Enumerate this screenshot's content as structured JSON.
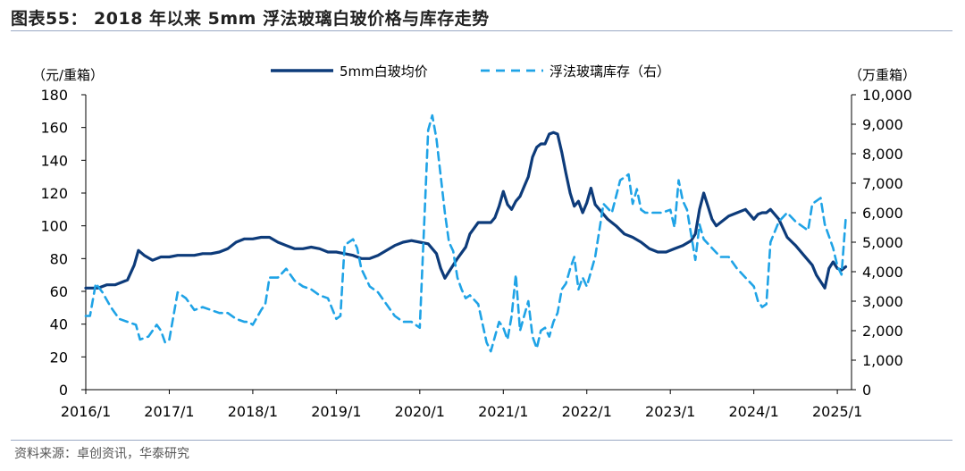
{
  "title": "图表55： 2018 年以来 5mm 浮法玻璃白玻价格与库存走势",
  "source": "资料来源：卓创资讯，华泰研究",
  "colors": {
    "price": "#0d3b7a",
    "inventory": "#1fa3e6",
    "axis": "#000000",
    "rule": "#9aa9c4"
  },
  "chart_data": {
    "type": "line",
    "title": "2018 年以来 5mm 浮法玻璃白玻价格与库存走势",
    "left_axis": {
      "label": "（元/重箱）",
      "min": 0,
      "max": 180,
      "ticks": [
        "0",
        "20",
        "40",
        "60",
        "80",
        "100",
        "120",
        "140",
        "160",
        "180"
      ]
    },
    "right_axis": {
      "label": "（万重箱）",
      "min": 0,
      "max": 10000,
      "ticks": [
        "0",
        "1,000",
        "2,000",
        "3,000",
        "4,000",
        "5,000",
        "6,000",
        "7,000",
        "8,000",
        "9,000",
        "10,000"
      ]
    },
    "x_axis": {
      "min": 2016.0,
      "max": 2025.17,
      "ticks": [
        {
          "label": "2016/1",
          "value": 2016.0
        },
        {
          "label": "2017/1",
          "value": 2017.0
        },
        {
          "label": "2018/1",
          "value": 2018.0
        },
        {
          "label": "2019/1",
          "value": 2019.0
        },
        {
          "label": "2020/1",
          "value": 2020.0
        },
        {
          "label": "2021/1",
          "value": 2021.0
        },
        {
          "label": "2022/1",
          "value": 2022.0
        },
        {
          "label": "2023/1",
          "value": 2023.0
        },
        {
          "label": "2024/1",
          "value": 2024.0
        },
        {
          "label": "2025/1",
          "value": 2025.0
        }
      ]
    },
    "legend": {
      "position": "top-center"
    },
    "series": [
      {
        "name": "5mm白玻均价",
        "axis": "left",
        "style": "solid",
        "x": [
          2016.0,
          2016.15,
          2016.25,
          2016.35,
          2016.5,
          2016.58,
          2016.63,
          2016.7,
          2016.8,
          2016.9,
          2017.0,
          2017.1,
          2017.2,
          2017.3,
          2017.4,
          2017.5,
          2017.6,
          2017.7,
          2017.8,
          2017.9,
          2018.0,
          2018.1,
          2018.2,
          2018.3,
          2018.4,
          2018.5,
          2018.6,
          2018.7,
          2018.8,
          2018.9,
          2019.0,
          2019.1,
          2019.2,
          2019.3,
          2019.4,
          2019.5,
          2019.6,
          2019.7,
          2019.8,
          2019.9,
          2020.0,
          2020.1,
          2020.2,
          2020.25,
          2020.3,
          2020.35,
          2020.45,
          2020.55,
          2020.6,
          2020.7,
          2020.8,
          2020.85,
          2020.9,
          2020.95,
          2021.0,
          2021.05,
          2021.1,
          2021.15,
          2021.2,
          2021.25,
          2021.3,
          2021.35,
          2021.4,
          2021.45,
          2021.5,
          2021.55,
          2021.6,
          2021.65,
          2021.7,
          2021.75,
          2021.8,
          2021.85,
          2021.9,
          2021.95,
          2022.0,
          2022.05,
          2022.1,
          2022.15,
          2022.2,
          2022.25,
          2022.3,
          2022.35,
          2022.45,
          2022.55,
          2022.65,
          2022.75,
          2022.85,
          2022.95,
          2023.05,
          2023.15,
          2023.25,
          2023.3,
          2023.35,
          2023.4,
          2023.45,
          2023.5,
          2023.55,
          2023.6,
          2023.7,
          2023.8,
          2023.9,
          2024.0,
          2024.05,
          2024.1,
          2024.15,
          2024.2,
          2024.3,
          2024.4,
          2024.5,
          2024.6,
          2024.7,
          2024.75,
          2024.8,
          2024.85,
          2024.9,
          2024.95,
          2025.0,
          2025.05,
          2025.1
        ],
        "values": [
          62,
          62,
          64,
          64,
          67,
          76,
          85,
          82,
          79,
          81,
          81,
          82,
          82,
          82,
          83,
          83,
          84,
          86,
          90,
          92,
          92,
          93,
          93,
          90,
          88,
          86,
          86,
          87,
          86,
          84,
          84,
          83,
          82,
          80,
          80,
          82,
          85,
          88,
          90,
          91,
          90,
          89,
          83,
          74,
          68,
          72,
          80,
          87,
          95,
          102,
          102,
          102,
          105,
          112,
          121,
          113,
          110,
          115,
          118,
          124,
          130,
          142,
          148,
          150,
          150,
          156,
          157,
          156,
          145,
          132,
          120,
          112,
          115,
          108,
          114,
          123,
          113,
          110,
          107,
          104,
          102,
          100,
          95,
          93,
          90,
          86,
          84,
          84,
          86,
          88,
          91,
          95,
          110,
          120,
          112,
          104,
          100,
          102,
          106,
          108,
          110,
          104,
          107,
          108,
          108,
          110,
          104,
          93,
          88,
          82,
          76,
          70,
          66,
          62,
          74,
          78,
          74,
          73,
          75
        ]
      },
      {
        "name": "浮法玻璃库存（右）",
        "axis": "right",
        "style": "dashed",
        "x": [
          2016.0,
          2016.05,
          2016.12,
          2016.2,
          2016.3,
          2016.4,
          2016.5,
          2016.6,
          2016.65,
          2016.75,
          2016.85,
          2016.9,
          2016.95,
          2017.0,
          2017.1,
          2017.2,
          2017.3,
          2017.4,
          2017.5,
          2017.6,
          2017.7,
          2017.8,
          2017.9,
          2017.95,
          2018.0,
          2018.1,
          2018.15,
          2018.2,
          2018.3,
          2018.4,
          2018.5,
          2018.6,
          2018.7,
          2018.8,
          2018.9,
          2019.0,
          2019.05,
          2019.1,
          2019.2,
          2019.25,
          2019.3,
          2019.4,
          2019.5,
          2019.6,
          2019.7,
          2019.8,
          2019.9,
          2020.0,
          2020.1,
          2020.15,
          2020.2,
          2020.3,
          2020.35,
          2020.4,
          2020.45,
          2020.5,
          2020.55,
          2020.6,
          2020.7,
          2020.8,
          2020.85,
          2020.9,
          2020.95,
          2021.0,
          2021.05,
          2021.1,
          2021.15,
          2021.2,
          2021.25,
          2021.3,
          2021.35,
          2021.4,
          2021.45,
          2021.5,
          2021.55,
          2021.6,
          2021.65,
          2021.7,
          2021.75,
          2021.8,
          2021.85,
          2021.9,
          2021.95,
          2022.0,
          2022.1,
          2022.2,
          2022.3,
          2022.4,
          2022.5,
          2022.55,
          2022.6,
          2022.65,
          2022.7,
          2022.8,
          2022.9,
          2023.0,
          2023.05,
          2023.1,
          2023.15,
          2023.2,
          2023.3,
          2023.35,
          2023.4,
          2023.5,
          2023.6,
          2023.7,
          2023.8,
          2023.9,
          2024.0,
          2024.05,
          2024.1,
          2024.15,
          2024.2,
          2024.3,
          2024.4,
          2024.5,
          2024.6,
          2024.65,
          2024.7,
          2024.8,
          2024.85,
          2024.9,
          2024.95,
          2025.0,
          2025.05,
          2025.1
        ],
        "values": [
          2500,
          2500,
          3600,
          3300,
          2800,
          2400,
          2300,
          2200,
          1700,
          1800,
          2200,
          2000,
          1600,
          1700,
          3300,
          3100,
          2700,
          2800,
          2700,
          2600,
          2600,
          2400,
          2300,
          2300,
          2200,
          2700,
          2900,
          3800,
          3800,
          4100,
          3700,
          3500,
          3400,
          3200,
          3100,
          2400,
          2500,
          4900,
          5100,
          4800,
          4100,
          3500,
          3300,
          2900,
          2500,
          2300,
          2300,
          2100,
          8800,
          9300,
          8500,
          6000,
          5000,
          4700,
          3800,
          3400,
          3100,
          3200,
          2900,
          1600,
          1300,
          1800,
          2300,
          2100,
          1700,
          2500,
          3900,
          2000,
          2500,
          3000,
          1800,
          1400,
          2000,
          2100,
          1800,
          2300,
          2600,
          3400,
          3600,
          4100,
          4500,
          3400,
          3800,
          3500,
          4500,
          6300,
          6000,
          7100,
          7300,
          6300,
          6800,
          6100,
          6000,
          6000,
          6000,
          6100,
          5500,
          7100,
          6400,
          6100,
          4400,
          5600,
          5100,
          4800,
          4500,
          4500,
          4100,
          3800,
          3500,
          3000,
          2800,
          2900,
          5000,
          5700,
          6000,
          5700,
          5500,
          5400,
          6300,
          6500,
          5600,
          5200,
          4800,
          4200,
          3900,
          5800
        ]
      }
    ]
  }
}
